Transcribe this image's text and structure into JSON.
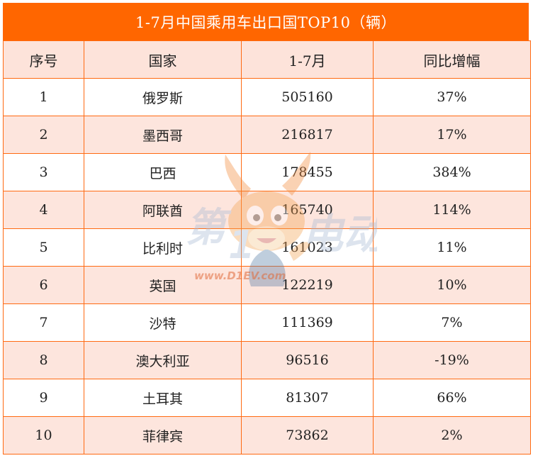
{
  "title": "1-7月中国乘用车出口国TOP10（辆）",
  "headers": {
    "rank": "序号",
    "country": "国家",
    "value": "1-7月",
    "yoy": "同比增幅"
  },
  "rows": [
    {
      "rank": "1",
      "country": "俄罗斯",
      "value": "505160",
      "yoy": "37%"
    },
    {
      "rank": "2",
      "country": "墨西哥",
      "value": "216817",
      "yoy": "17%"
    },
    {
      "rank": "3",
      "country": "巴西",
      "value": "178455",
      "yoy": "384%"
    },
    {
      "rank": "4",
      "country": "阿联酋",
      "value": "165740",
      "yoy": "114%"
    },
    {
      "rank": "5",
      "country": "比利时",
      "value": "161023",
      "yoy": "11%"
    },
    {
      "rank": "6",
      "country": "英国",
      "value": "122219",
      "yoy": "10%"
    },
    {
      "rank": "7",
      "country": "沙特",
      "value": "111369",
      "yoy": "7%"
    },
    {
      "rank": "8",
      "country": "澳大利亚",
      "value": "96516",
      "yoy": "-19%"
    },
    {
      "rank": "9",
      "country": "土耳其",
      "value": "81307",
      "yoy": "66%"
    },
    {
      "rank": "10",
      "country": "菲律宾",
      "value": "73862",
      "yoy": "2%"
    }
  ],
  "watermark": {
    "brand_text": "第一电动",
    "url": "www.D1EV.com"
  },
  "colors": {
    "title_bg": "#ff6600",
    "border": "#ff6a12",
    "stripe": "#fde5dd"
  }
}
